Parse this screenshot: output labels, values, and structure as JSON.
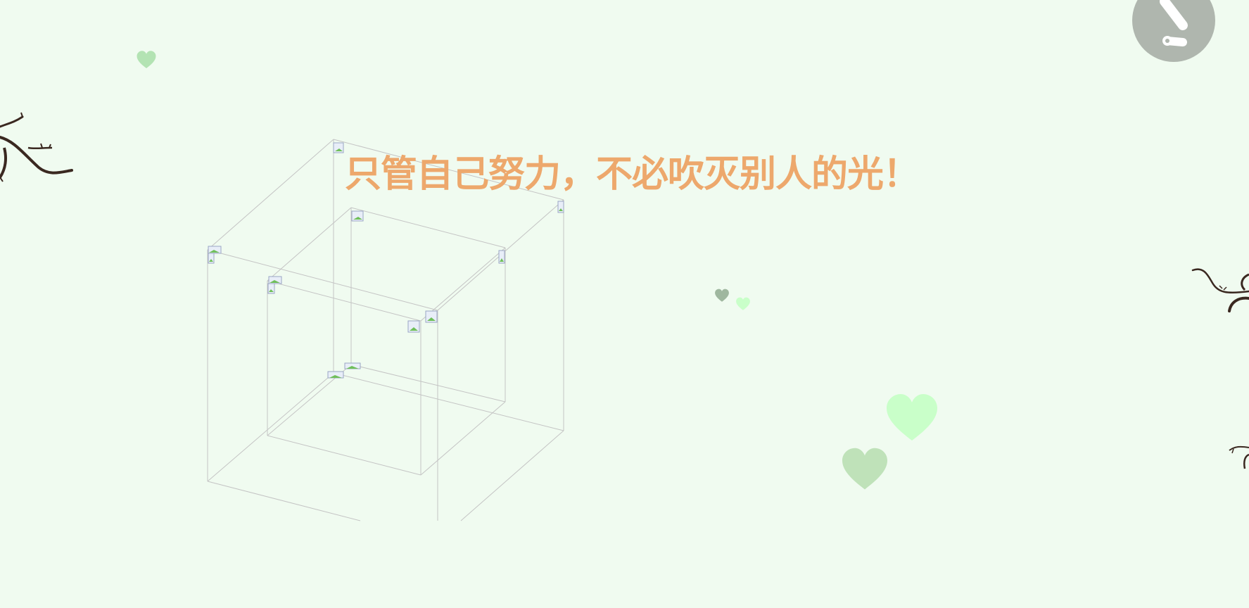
{
  "headline": {
    "text": "只管自己努力，不必吹灭别人的光！",
    "color": "#eda86c"
  },
  "background_color": "#f0fbf0",
  "music_button": {
    "icon": "music-note-icon",
    "color": "#afb6ae"
  },
  "hearts": {
    "colors": [
      "#b3e3b3",
      "#c9ffc9",
      "#bfe2b9",
      "#9fb79f"
    ]
  },
  "branch_color": "#3a2820",
  "cube": {
    "line_color": "#c4c4c4",
    "photo_tiles": 14
  }
}
